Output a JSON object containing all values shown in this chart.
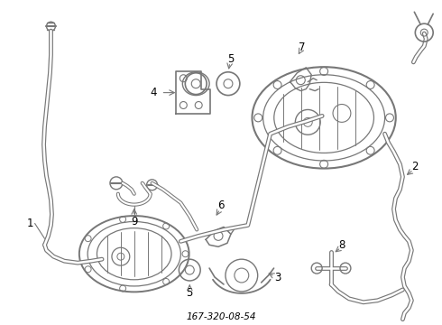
{
  "title": "167-320-08-54",
  "background_color": "#ffffff",
  "line_color": "#777777",
  "label_color": "#000000",
  "figsize": [
    4.9,
    3.6
  ],
  "dpi": 100
}
